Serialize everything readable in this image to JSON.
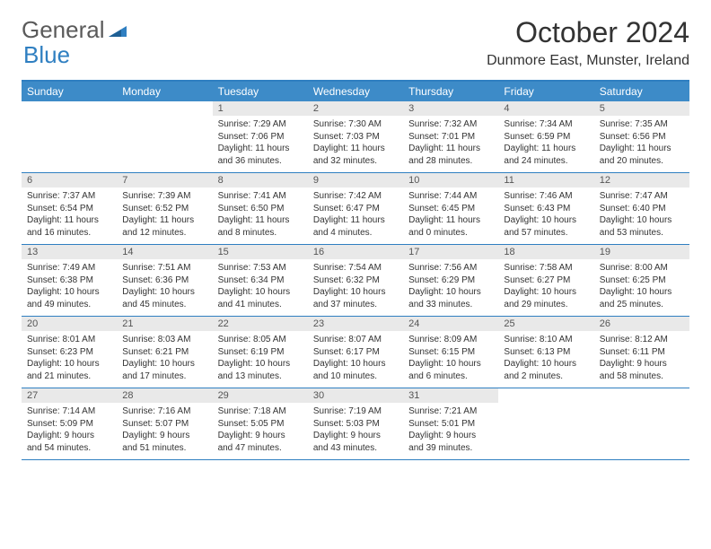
{
  "logo": {
    "text1": "General",
    "text2": "Blue"
  },
  "title": "October 2024",
  "location": "Dunmore East, Munster, Ireland",
  "colors": {
    "header_bg": "#3d8bc8",
    "border": "#2f7fc1",
    "daynum_bg": "#e9e9e9",
    "text": "#333333"
  },
  "weekdays": [
    "Sunday",
    "Monday",
    "Tuesday",
    "Wednesday",
    "Thursday",
    "Friday",
    "Saturday"
  ],
  "weeks": [
    [
      null,
      null,
      {
        "n": "1",
        "sr": "Sunrise: 7:29 AM",
        "ss": "Sunset: 7:06 PM",
        "dl": "Daylight: 11 hours and 36 minutes."
      },
      {
        "n": "2",
        "sr": "Sunrise: 7:30 AM",
        "ss": "Sunset: 7:03 PM",
        "dl": "Daylight: 11 hours and 32 minutes."
      },
      {
        "n": "3",
        "sr": "Sunrise: 7:32 AM",
        "ss": "Sunset: 7:01 PM",
        "dl": "Daylight: 11 hours and 28 minutes."
      },
      {
        "n": "4",
        "sr": "Sunrise: 7:34 AM",
        "ss": "Sunset: 6:59 PM",
        "dl": "Daylight: 11 hours and 24 minutes."
      },
      {
        "n": "5",
        "sr": "Sunrise: 7:35 AM",
        "ss": "Sunset: 6:56 PM",
        "dl": "Daylight: 11 hours and 20 minutes."
      }
    ],
    [
      {
        "n": "6",
        "sr": "Sunrise: 7:37 AM",
        "ss": "Sunset: 6:54 PM",
        "dl": "Daylight: 11 hours and 16 minutes."
      },
      {
        "n": "7",
        "sr": "Sunrise: 7:39 AM",
        "ss": "Sunset: 6:52 PM",
        "dl": "Daylight: 11 hours and 12 minutes."
      },
      {
        "n": "8",
        "sr": "Sunrise: 7:41 AM",
        "ss": "Sunset: 6:50 PM",
        "dl": "Daylight: 11 hours and 8 minutes."
      },
      {
        "n": "9",
        "sr": "Sunrise: 7:42 AM",
        "ss": "Sunset: 6:47 PM",
        "dl": "Daylight: 11 hours and 4 minutes."
      },
      {
        "n": "10",
        "sr": "Sunrise: 7:44 AM",
        "ss": "Sunset: 6:45 PM",
        "dl": "Daylight: 11 hours and 0 minutes."
      },
      {
        "n": "11",
        "sr": "Sunrise: 7:46 AM",
        "ss": "Sunset: 6:43 PM",
        "dl": "Daylight: 10 hours and 57 minutes."
      },
      {
        "n": "12",
        "sr": "Sunrise: 7:47 AM",
        "ss": "Sunset: 6:40 PM",
        "dl": "Daylight: 10 hours and 53 minutes."
      }
    ],
    [
      {
        "n": "13",
        "sr": "Sunrise: 7:49 AM",
        "ss": "Sunset: 6:38 PM",
        "dl": "Daylight: 10 hours and 49 minutes."
      },
      {
        "n": "14",
        "sr": "Sunrise: 7:51 AM",
        "ss": "Sunset: 6:36 PM",
        "dl": "Daylight: 10 hours and 45 minutes."
      },
      {
        "n": "15",
        "sr": "Sunrise: 7:53 AM",
        "ss": "Sunset: 6:34 PM",
        "dl": "Daylight: 10 hours and 41 minutes."
      },
      {
        "n": "16",
        "sr": "Sunrise: 7:54 AM",
        "ss": "Sunset: 6:32 PM",
        "dl": "Daylight: 10 hours and 37 minutes."
      },
      {
        "n": "17",
        "sr": "Sunrise: 7:56 AM",
        "ss": "Sunset: 6:29 PM",
        "dl": "Daylight: 10 hours and 33 minutes."
      },
      {
        "n": "18",
        "sr": "Sunrise: 7:58 AM",
        "ss": "Sunset: 6:27 PM",
        "dl": "Daylight: 10 hours and 29 minutes."
      },
      {
        "n": "19",
        "sr": "Sunrise: 8:00 AM",
        "ss": "Sunset: 6:25 PM",
        "dl": "Daylight: 10 hours and 25 minutes."
      }
    ],
    [
      {
        "n": "20",
        "sr": "Sunrise: 8:01 AM",
        "ss": "Sunset: 6:23 PM",
        "dl": "Daylight: 10 hours and 21 minutes."
      },
      {
        "n": "21",
        "sr": "Sunrise: 8:03 AM",
        "ss": "Sunset: 6:21 PM",
        "dl": "Daylight: 10 hours and 17 minutes."
      },
      {
        "n": "22",
        "sr": "Sunrise: 8:05 AM",
        "ss": "Sunset: 6:19 PM",
        "dl": "Daylight: 10 hours and 13 minutes."
      },
      {
        "n": "23",
        "sr": "Sunrise: 8:07 AM",
        "ss": "Sunset: 6:17 PM",
        "dl": "Daylight: 10 hours and 10 minutes."
      },
      {
        "n": "24",
        "sr": "Sunrise: 8:09 AM",
        "ss": "Sunset: 6:15 PM",
        "dl": "Daylight: 10 hours and 6 minutes."
      },
      {
        "n": "25",
        "sr": "Sunrise: 8:10 AM",
        "ss": "Sunset: 6:13 PM",
        "dl": "Daylight: 10 hours and 2 minutes."
      },
      {
        "n": "26",
        "sr": "Sunrise: 8:12 AM",
        "ss": "Sunset: 6:11 PM",
        "dl": "Daylight: 9 hours and 58 minutes."
      }
    ],
    [
      {
        "n": "27",
        "sr": "Sunrise: 7:14 AM",
        "ss": "Sunset: 5:09 PM",
        "dl": "Daylight: 9 hours and 54 minutes."
      },
      {
        "n": "28",
        "sr": "Sunrise: 7:16 AM",
        "ss": "Sunset: 5:07 PM",
        "dl": "Daylight: 9 hours and 51 minutes."
      },
      {
        "n": "29",
        "sr": "Sunrise: 7:18 AM",
        "ss": "Sunset: 5:05 PM",
        "dl": "Daylight: 9 hours and 47 minutes."
      },
      {
        "n": "30",
        "sr": "Sunrise: 7:19 AM",
        "ss": "Sunset: 5:03 PM",
        "dl": "Daylight: 9 hours and 43 minutes."
      },
      {
        "n": "31",
        "sr": "Sunrise: 7:21 AM",
        "ss": "Sunset: 5:01 PM",
        "dl": "Daylight: 9 hours and 39 minutes."
      },
      null,
      null
    ]
  ]
}
